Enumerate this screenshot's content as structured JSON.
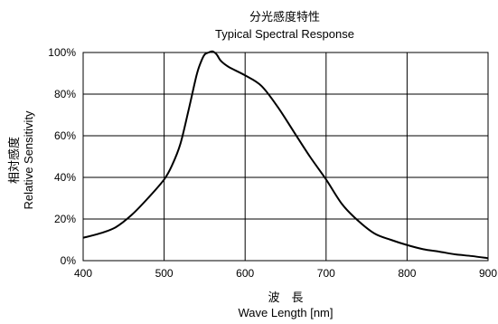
{
  "chart_data": {
    "type": "line",
    "title_jp": "分光感度特性",
    "title": "Typical Spectral Response",
    "ylabel_jp": "相対感度",
    "ylabel": "Relative Sensitivity",
    "xlabel_jp": "波　長",
    "xlabel": "Wave Length [nm]",
    "xlim": [
      400,
      900
    ],
    "ylim": [
      0,
      100
    ],
    "grid": true,
    "x_ticks": [
      "400",
      "500",
      "600",
      "700",
      "800",
      "900"
    ],
    "y_ticks": [
      "0%",
      "20%",
      "40%",
      "60%",
      "80%",
      "100%"
    ],
    "series": [
      {
        "x": [
          400,
          420,
          440,
          460,
          480,
          500,
          510,
          520,
          530,
          540,
          545,
          550,
          555,
          560,
          565,
          570,
          580,
          600,
          620,
          640,
          660,
          680,
          700,
          720,
          740,
          760,
          780,
          800,
          820,
          840,
          860,
          880,
          900
        ],
        "values": [
          11,
          13,
          16,
          22,
          30,
          39,
          46,
          56,
          72,
          89,
          95,
          99,
          100,
          100.5,
          99,
          96,
          93,
          89,
          84,
          74,
          62,
          50,
          39,
          27,
          19,
          13,
          10,
          7.5,
          5.5,
          4.3,
          3,
          2.2,
          1.2
        ]
      }
    ]
  }
}
